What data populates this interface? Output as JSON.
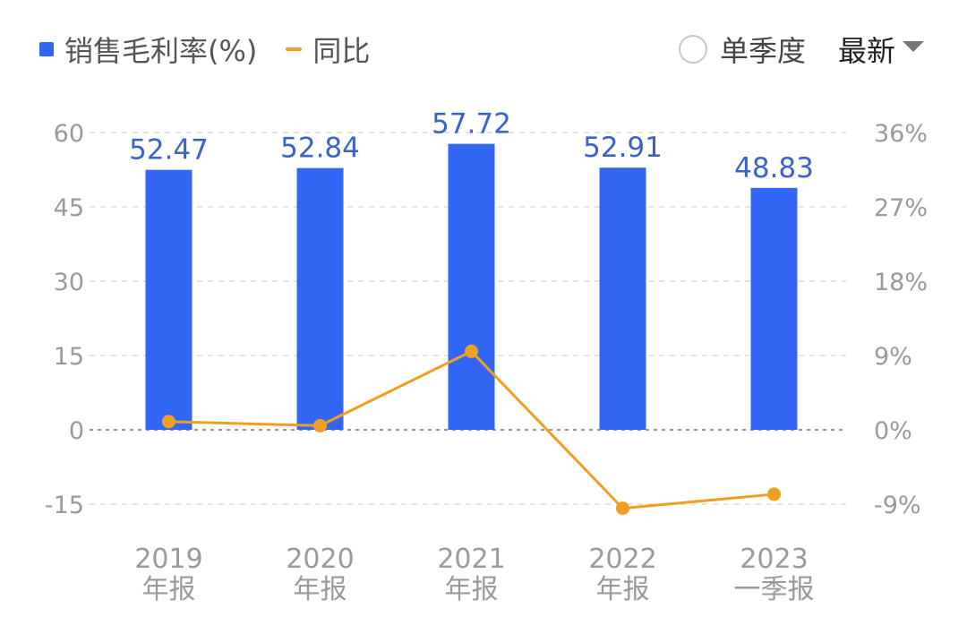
{
  "legend": {
    "bar_series": "销售毛利率(%)",
    "line_series": "同比"
  },
  "controls": {
    "single_quarter_label": "单季度",
    "sort_label": "最新"
  },
  "colors": {
    "bar": "#3366f5",
    "line": "#f0a020",
    "grid": "#e4e4e4",
    "zero_line": "#999999"
  },
  "chart_data": {
    "type": "bar",
    "categories": [
      [
        "2019",
        "年报"
      ],
      [
        "2020",
        "年报"
      ],
      [
        "2021",
        "年报"
      ],
      [
        "2022",
        "年报"
      ],
      [
        "2023",
        "一季报"
      ]
    ],
    "series": [
      {
        "name": "销售毛利率(%)",
        "type": "bar",
        "axis": "left",
        "values": [
          52.47,
          52.84,
          57.72,
          52.91,
          48.83
        ]
      },
      {
        "name": "同比",
        "type": "line",
        "axis": "right",
        "values": [
          1.0,
          0.5,
          9.5,
          -9.5,
          -7.8
        ]
      }
    ],
    "left_axis": {
      "ylim": [
        -15,
        60
      ],
      "ticks": [
        60,
        45,
        30,
        15,
        0,
        -15
      ],
      "tick_labels": [
        "60",
        "45",
        "30",
        "15",
        "0",
        "-15"
      ]
    },
    "right_axis": {
      "ylim": [
        -9,
        36
      ],
      "ticks": [
        36,
        27,
        18,
        9,
        0,
        -9
      ],
      "tick_labels": [
        "36%",
        "27%",
        "18%",
        "9%",
        "0%",
        "-9%"
      ]
    },
    "data_labels": [
      "52.47",
      "52.84",
      "57.72",
      "52.91",
      "48.83"
    ],
    "grid": true,
    "legend_position": "top-left"
  }
}
